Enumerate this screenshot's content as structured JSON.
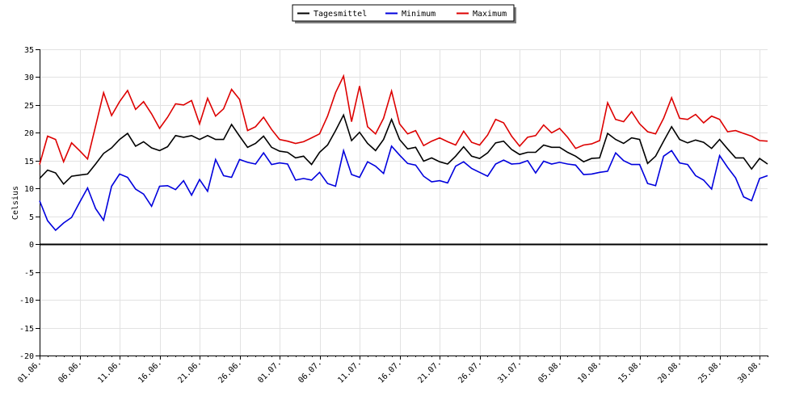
{
  "chart_data": {
    "type": "line",
    "title": "",
    "xlabel": "",
    "ylabel": "Celsius",
    "ylim": [
      -20,
      35
    ],
    "yticks": [
      35,
      30,
      25,
      20,
      15,
      10,
      5,
      0,
      -5,
      -10,
      -15,
      -20
    ],
    "grid": true,
    "legend_position": "top-center",
    "x_start": "01.06.",
    "x_end": "31.08.",
    "x_tick_labels": [
      "01.06.",
      "06.06.",
      "11.06.",
      "16.06.",
      "21.06.",
      "26.06.",
      "01.07.",
      "06.07.",
      "11.07.",
      "16.07.",
      "21.07.",
      "26.07.",
      "31.07.",
      "05.08.",
      "10.08.",
      "15.08.",
      "20.08.",
      "25.08.",
      "30.08."
    ],
    "series": [
      {
        "name": "Tagesmittel",
        "color": "#000000",
        "values": [
          11.8,
          13.3,
          12.8,
          10.8,
          12.2,
          12.4,
          12.6,
          14.4,
          16.3,
          17.3,
          18.8,
          19.9,
          17.6,
          18.4,
          17.3,
          16.8,
          17.5,
          19.5,
          19.2,
          19.5,
          18.8,
          19.5,
          18.8,
          18.8,
          21.5,
          19.4,
          17.4,
          18.1,
          19.4,
          17.4,
          16.7,
          16.5,
          15.5,
          15.8,
          14.3,
          16.5,
          17.8,
          20.4,
          23.2,
          18.6,
          20.1,
          18.1,
          16.8,
          18.8,
          22.4,
          18.8,
          17.1,
          17.4,
          14.9,
          15.5,
          14.8,
          14.4,
          15.8,
          17.5,
          15.8,
          15.4,
          16.4,
          18.2,
          18.5,
          17.0,
          16.1,
          16.5,
          16.5,
          17.8,
          17.4,
          17.4,
          16.5,
          15.8,
          14.8,
          15.4,
          15.5,
          19.9,
          18.8,
          18.1,
          19.1,
          18.8,
          14.5,
          15.8,
          18.5,
          21.1,
          18.8,
          18.2,
          18.7,
          18.3,
          17.2,
          18.8,
          17.1,
          15.5,
          15.5,
          13.5,
          15.4,
          14.4
        ]
      },
      {
        "name": "Minimum",
        "color": "#0000dd",
        "values": [
          7.8,
          4.2,
          2.5,
          3.8,
          4.8,
          7.5,
          10.1,
          6.4,
          4.3,
          10.4,
          12.6,
          12.0,
          9.9,
          9.0,
          6.8,
          10.4,
          10.5,
          9.8,
          11.4,
          8.8,
          11.6,
          9.5,
          15.2,
          12.3,
          12.0,
          15.2,
          14.7,
          14.4,
          16.4,
          14.3,
          14.6,
          14.4,
          11.5,
          11.8,
          11.5,
          12.9,
          10.9,
          10.4,
          16.8,
          12.5,
          12.0,
          14.8,
          14.0,
          12.7,
          17.6,
          16.0,
          14.5,
          14.2,
          12.2,
          11.2,
          11.4,
          11.0,
          14.0,
          14.8,
          13.6,
          12.9,
          12.2,
          14.4,
          15.1,
          14.4,
          14.5,
          15.0,
          12.8,
          14.9,
          14.4,
          14.7,
          14.4,
          14.2,
          12.5,
          12.6,
          12.9,
          13.1,
          16.4,
          15.0,
          14.3,
          14.3,
          10.9,
          10.5,
          15.8,
          16.8,
          14.6,
          14.3,
          12.3,
          11.5,
          9.9,
          15.9,
          13.8,
          11.9,
          8.5,
          7.8,
          11.8,
          12.3
        ]
      },
      {
        "name": "Maximum",
        "color": "#dd0000",
        "values": [
          14.3,
          19.4,
          18.8,
          14.8,
          18.2,
          16.8,
          15.3,
          21.2,
          27.2,
          23.1,
          25.6,
          27.6,
          24.2,
          25.6,
          23.4,
          20.8,
          22.8,
          25.2,
          25.0,
          25.8,
          21.6,
          26.2,
          23.0,
          24.3,
          27.8,
          26.0,
          20.4,
          21.1,
          22.8,
          20.6,
          18.8,
          18.5,
          18.1,
          18.4,
          19.1,
          19.8,
          23.0,
          27.2,
          30.2,
          22.0,
          28.4,
          21.1,
          19.8,
          22.6,
          27.5,
          21.6,
          19.8,
          20.4,
          17.7,
          18.5,
          19.1,
          18.4,
          17.8,
          20.3,
          18.3,
          17.8,
          19.6,
          22.4,
          21.8,
          19.4,
          17.6,
          19.2,
          19.5,
          21.4,
          20.0,
          20.8,
          19.2,
          17.2,
          17.8,
          18.0,
          18.6,
          25.4,
          22.4,
          22.0,
          23.8,
          21.6,
          20.2,
          19.8,
          22.6,
          26.3,
          22.6,
          22.4,
          23.3,
          21.8,
          23.0,
          22.4,
          20.2,
          20.4,
          19.9,
          19.4,
          18.6,
          18.5
        ]
      }
    ]
  }
}
